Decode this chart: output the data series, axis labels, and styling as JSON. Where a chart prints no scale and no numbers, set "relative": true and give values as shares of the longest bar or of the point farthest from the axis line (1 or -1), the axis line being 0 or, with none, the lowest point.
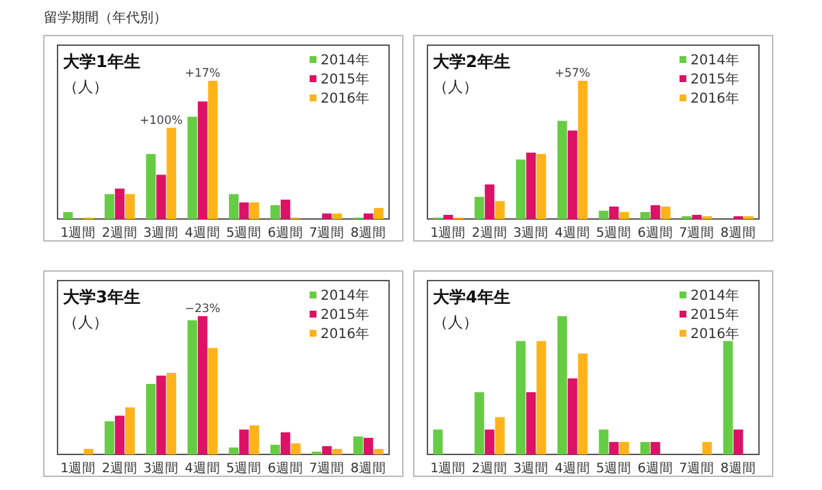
{
  "chart_data": [
    {
      "type": "bar",
      "title": "大学1年生",
      "ylabel": "（人）",
      "relative": true,
      "legend": "top right",
      "categories": [
        "1週間",
        "2週間",
        "3週間",
        "4週間",
        "5週間",
        "6週間",
        "7週間",
        "8週間"
      ],
      "series": [
        {
          "name": "2014年",
          "color": "#66cc44",
          "values": [
            0.05,
            0.18,
            0.47,
            0.74,
            0.18,
            0.1,
            0,
            0.01
          ]
        },
        {
          "name": "2015年",
          "color": "#dd1166",
          "values": [
            0,
            0.22,
            0.32,
            0.85,
            0.12,
            0.14,
            0.04,
            0.04
          ]
        },
        {
          "name": "2016年",
          "color": "#ffb31a",
          "values": [
            0.01,
            0.18,
            0.66,
            1,
            0.12,
            0.01,
            0.04,
            0.08
          ]
        }
      ],
      "annotations": [
        "留学期間（年代別）",
        {
          "text": "+100%",
          "x": "3週間",
          "y": 0.66
        },
        {
          "text": "+17%",
          "x": "4週間",
          "y": 1
        }
      ]
    },
    {
      "type": "bar",
      "title": "大学2年生",
      "ylabel": "（人）",
      "relative": true,
      "legend": "top right",
      "categories": [
        "1週間",
        "2週間",
        "3週間",
        "4週間",
        "5週間",
        "6週間",
        "7週間",
        "8週間"
      ],
      "series": [
        {
          "name": "2014年",
          "color": "#66cc44",
          "values": [
            0.01,
            0.16,
            0.43,
            0.71,
            0.06,
            0.05,
            0.02,
            0
          ]
        },
        {
          "name": "2015年",
          "color": "#dd1166",
          "values": [
            0.03,
            0.25,
            0.48,
            0.64,
            0.09,
            0.1,
            0.03,
            0.02
          ]
        },
        {
          "name": "2016年",
          "color": "#ffb31a",
          "values": [
            0.01,
            0.13,
            0.47,
            1,
            0.05,
            0.09,
            0.02,
            0.02
          ]
        }
      ],
      "annotations": [
        {
          "text": "+57%",
          "x": "4週間",
          "y": 1
        }
      ]
    },
    {
      "type": "bar",
      "title": "大学3年生",
      "ylabel": "（人）",
      "relative": true,
      "legend": "top right",
      "categories": [
        "1週間",
        "2週間",
        "3週間",
        "4週間",
        "5週間",
        "6週間",
        "7週間",
        "8週間"
      ],
      "series": [
        {
          "name": "2014年",
          "color": "#66cc44",
          "values": [
            0,
            0.24,
            0.51,
            0.97,
            0.05,
            0.07,
            0.02,
            0.13
          ]
        },
        {
          "name": "2015年",
          "color": "#dd1166",
          "values": [
            0,
            0.28,
            0.57,
            1,
            0.18,
            0.16,
            0.06,
            0.12
          ]
        },
        {
          "name": "2016年",
          "color": "#ffb31a",
          "values": [
            0.04,
            0.34,
            0.59,
            0.77,
            0.21,
            0.08,
            0.04,
            0.04
          ]
        }
      ],
      "annotations": [
        {
          "text": "−23%",
          "x": "4週間",
          "y": 1
        }
      ]
    },
    {
      "type": "bar",
      "title": "大学4年生",
      "ylabel": "（人）",
      "relative": true,
      "legend": "top right",
      "categories": [
        "1週間",
        "2週間",
        "3週間",
        "4週間",
        "5週間",
        "6週間",
        "7週間",
        "8週間"
      ],
      "series": [
        {
          "name": "2014年",
          "color": "#66cc44",
          "values": [
            0.18,
            0.45,
            0.82,
            1,
            0.18,
            0.09,
            0,
            0.82
          ]
        },
        {
          "name": "2015年",
          "color": "#dd1166",
          "values": [
            0,
            0.18,
            0.45,
            0.55,
            0.09,
            0.09,
            0,
            0.18
          ]
        },
        {
          "name": "2016年",
          "color": "#ffb31a",
          "values": [
            0,
            0.27,
            0.82,
            0.73,
            0.09,
            0,
            0.09,
            0
          ]
        }
      ]
    }
  ]
}
